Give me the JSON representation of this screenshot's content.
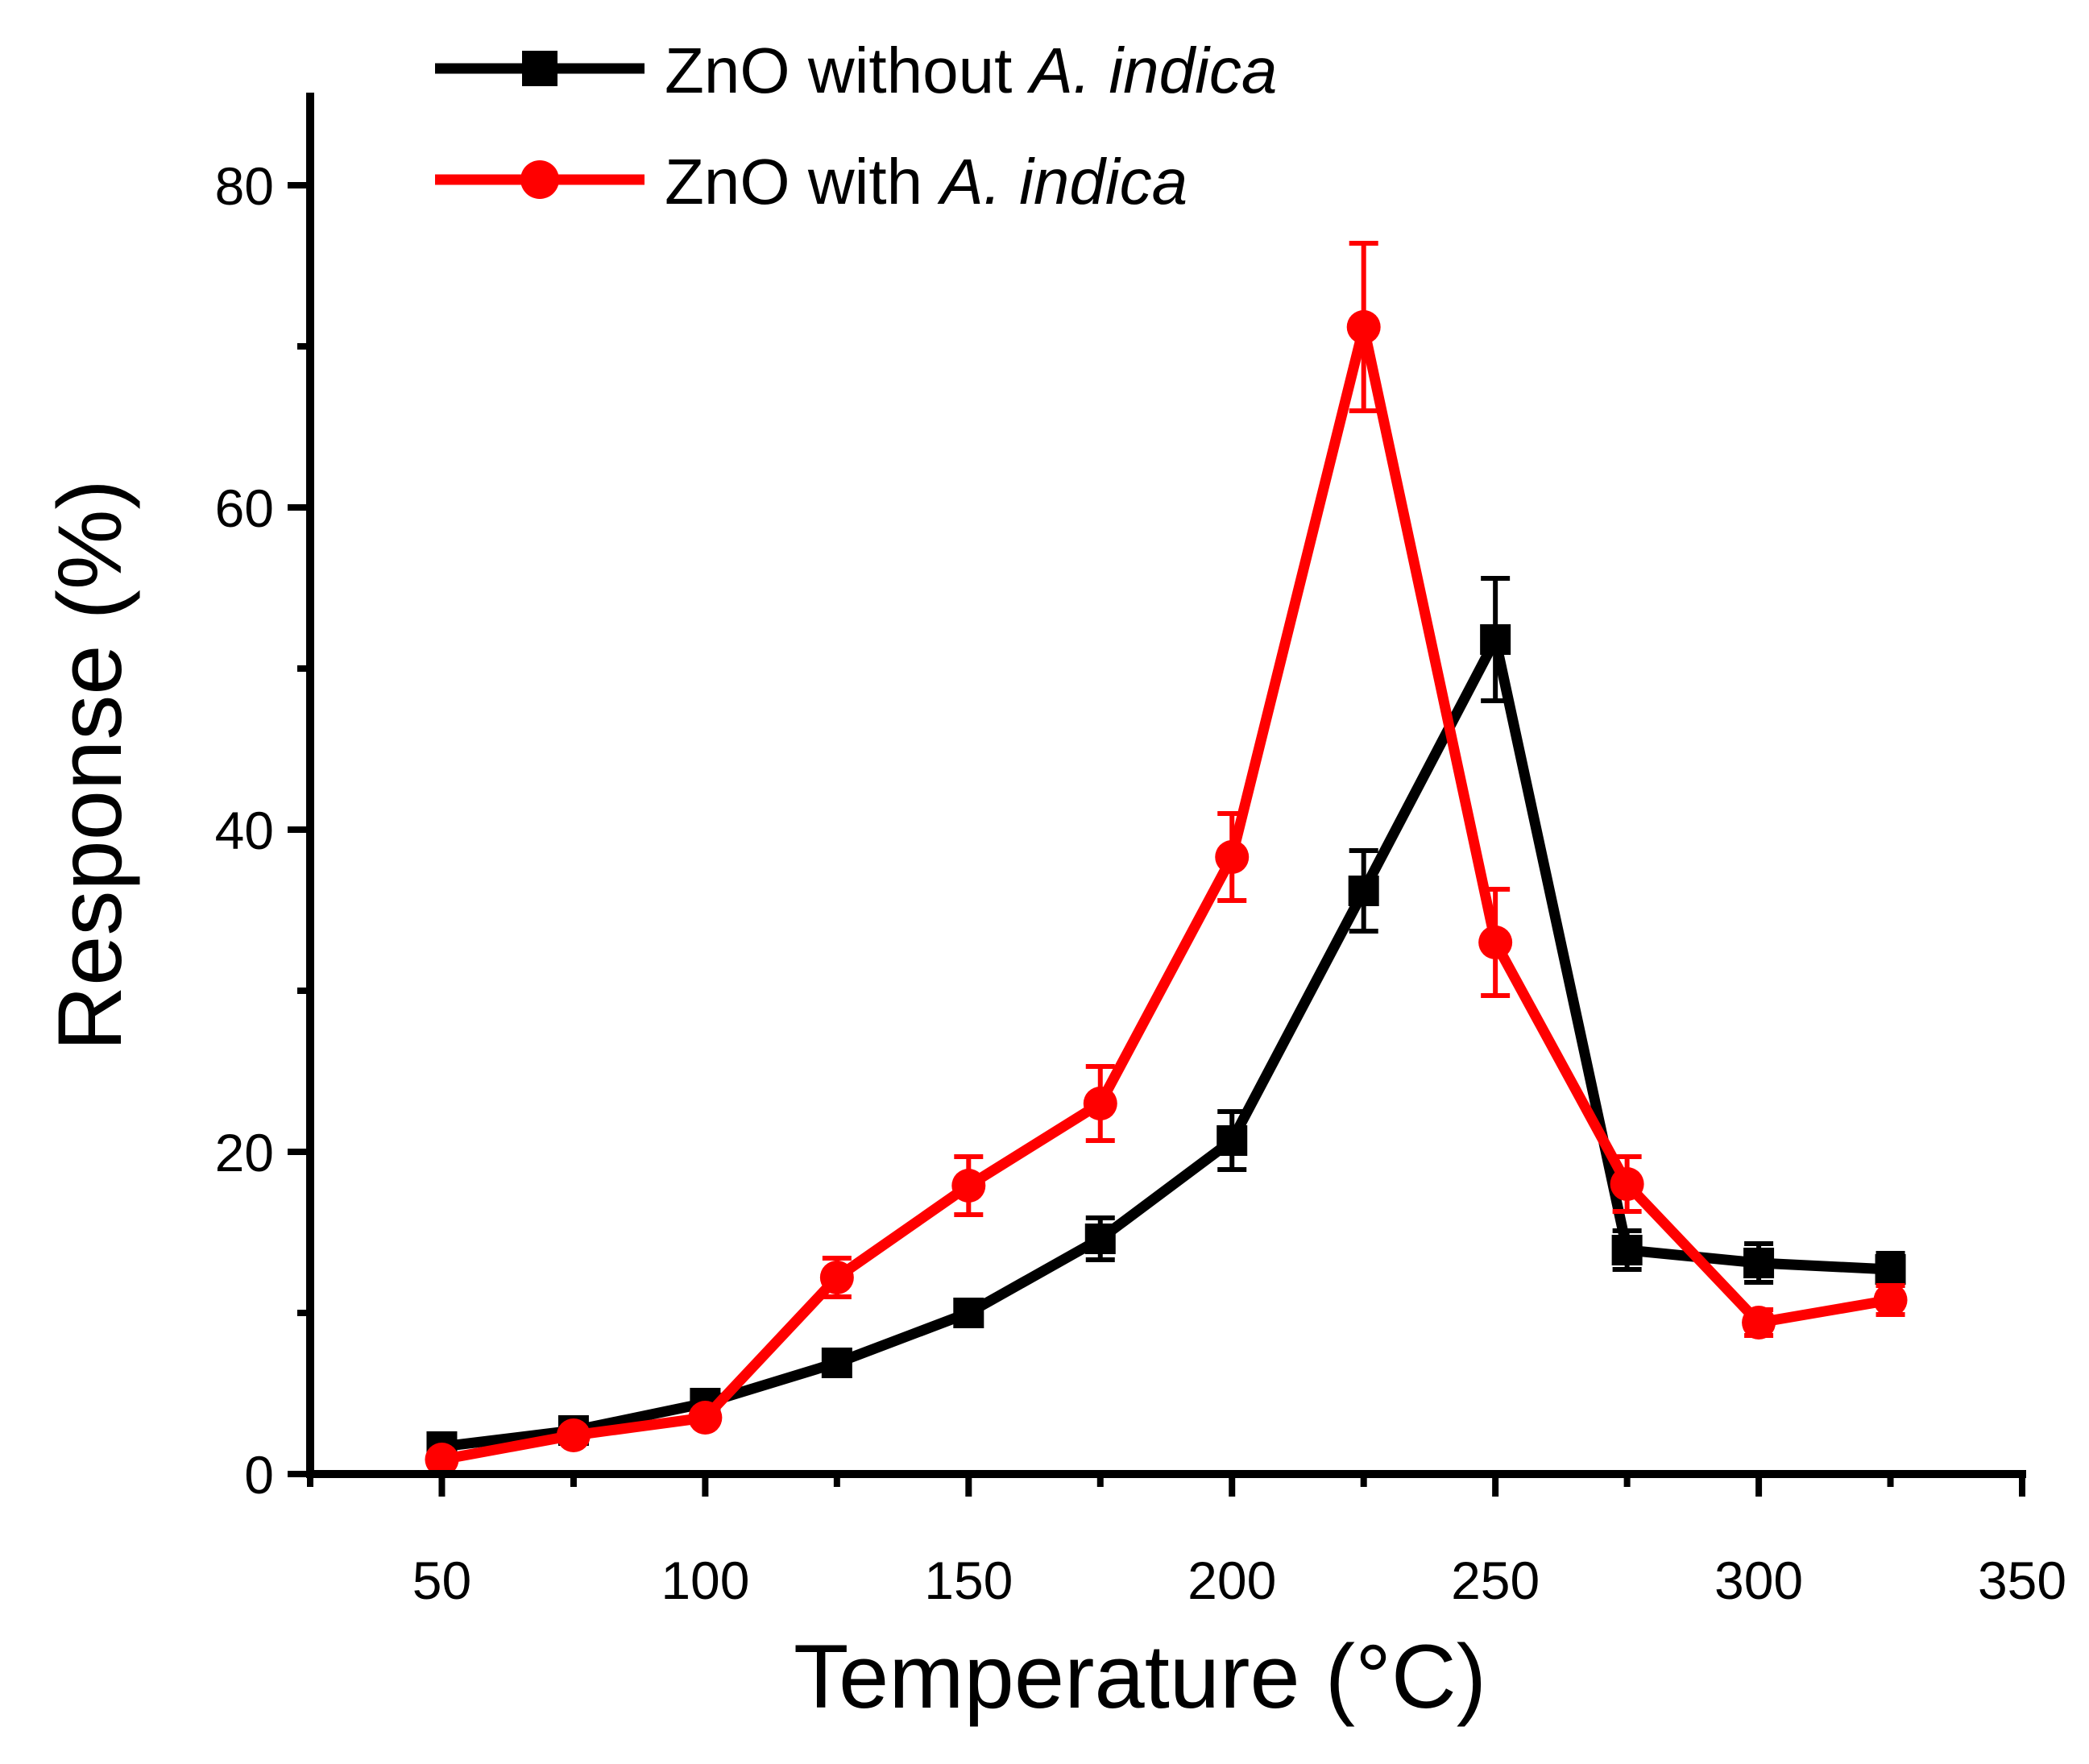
{
  "chart_data": {
    "type": "line",
    "title": "",
    "xlabel": "Temperature (°C)",
    "ylabel": "Response (%)",
    "xlim": [
      25,
      350
    ],
    "ylim": [
      0,
      85
    ],
    "x_ticks": [
      50,
      100,
      150,
      200,
      250,
      300,
      350
    ],
    "y_ticks": [
      0,
      20,
      40,
      60,
      80
    ],
    "grid": false,
    "legend_position": "top-left",
    "x": [
      50,
      75,
      100,
      125,
      150,
      175,
      200,
      225,
      250,
      275,
      300,
      325
    ],
    "series": [
      {
        "name_prefix": "ZnO without ",
        "name_italic": "A. indica",
        "color": "#000000",
        "marker": "square",
        "values": [
          1.7,
          2.7,
          4.4,
          6.9,
          10.0,
          14.6,
          20.7,
          36.2,
          51.8,
          13.9,
          13.1,
          12.7
        ],
        "errors": [
          0.4,
          0.4,
          0.5,
          0.6,
          0.8,
          1.3,
          1.8,
          2.5,
          3.8,
          1.2,
          1.2,
          1.0
        ]
      },
      {
        "name_prefix": "ZnO with ",
        "name_italic": "A. indica",
        "color": "#ff0000",
        "marker": "circle",
        "values": [
          0.9,
          2.4,
          3.5,
          12.2,
          17.9,
          23.0,
          38.3,
          71.2,
          33.0,
          18.0,
          9.4,
          10.8
        ],
        "errors": [
          0.4,
          0.4,
          0.4,
          1.2,
          1.8,
          2.3,
          2.7,
          5.2,
          3.3,
          1.7,
          0.8,
          0.9
        ]
      }
    ]
  }
}
